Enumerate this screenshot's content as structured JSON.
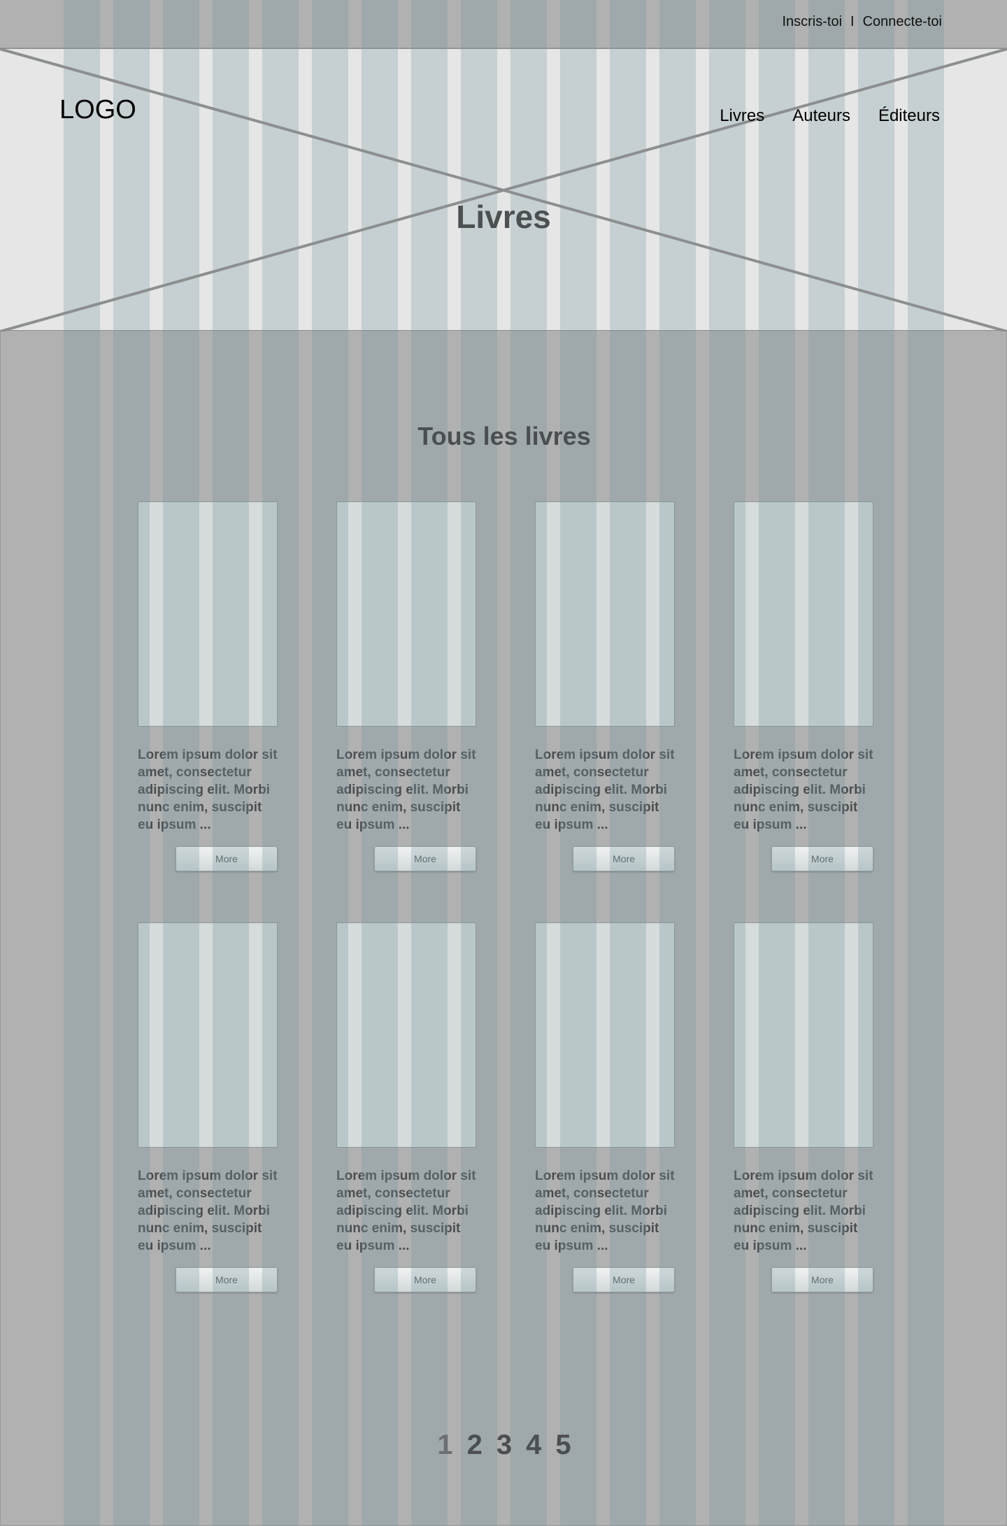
{
  "topbar": {
    "signup": "Inscris-toi",
    "separator": "I",
    "login": "Connecte-toi"
  },
  "header": {
    "logo": "LOGO",
    "nav": [
      "Livres",
      "Auteurs",
      "Éditeurs"
    ],
    "title": "Livres"
  },
  "main": {
    "section_title": "Tous les livres",
    "books": [
      {
        "description": "Lorem ipsum dolor sit amet, consectetur adipiscing elit. Morbi nunc enim, suscipit eu ipsum ...",
        "button": "More"
      },
      {
        "description": "Lorem ipsum dolor sit amet, consectetur adipiscing elit. Morbi nunc enim, suscipit eu ipsum ...",
        "button": "More"
      },
      {
        "description": "Lorem ipsum dolor sit amet, consectetur adipiscing elit. Morbi nunc enim, suscipit eu ipsum ...",
        "button": "More"
      },
      {
        "description": "Lorem ipsum dolor sit amet, consectetur adipiscing elit. Morbi nunc enim, suscipit eu ipsum ...",
        "button": "More"
      },
      {
        "description": "Lorem ipsum dolor sit amet, consectetur adipiscing elit. Morbi nunc enim, suscipit eu ipsum ...",
        "button": "More"
      },
      {
        "description": "Lorem ipsum dolor sit amet, consectetur adipiscing elit. Morbi nunc enim, suscipit eu ipsum ...",
        "button": "More"
      },
      {
        "description": "Lorem ipsum dolor sit amet, consectetur adipiscing elit. Morbi nunc enim, suscipit eu ipsum ...",
        "button": "More"
      },
      {
        "description": "Lorem ipsum dolor sit amet, consectetur adipiscing elit. Morbi nunc enim, suscipit eu ipsum ...",
        "button": "More"
      }
    ],
    "pagination": {
      "pages": [
        "1",
        "2",
        "3",
        "4",
        "5"
      ],
      "current": "1"
    }
  },
  "colors": {
    "background": "#b1b1b1",
    "hero": "#e6e6e6",
    "text": "#4b4f51",
    "grid_overlay": "#73949b"
  }
}
